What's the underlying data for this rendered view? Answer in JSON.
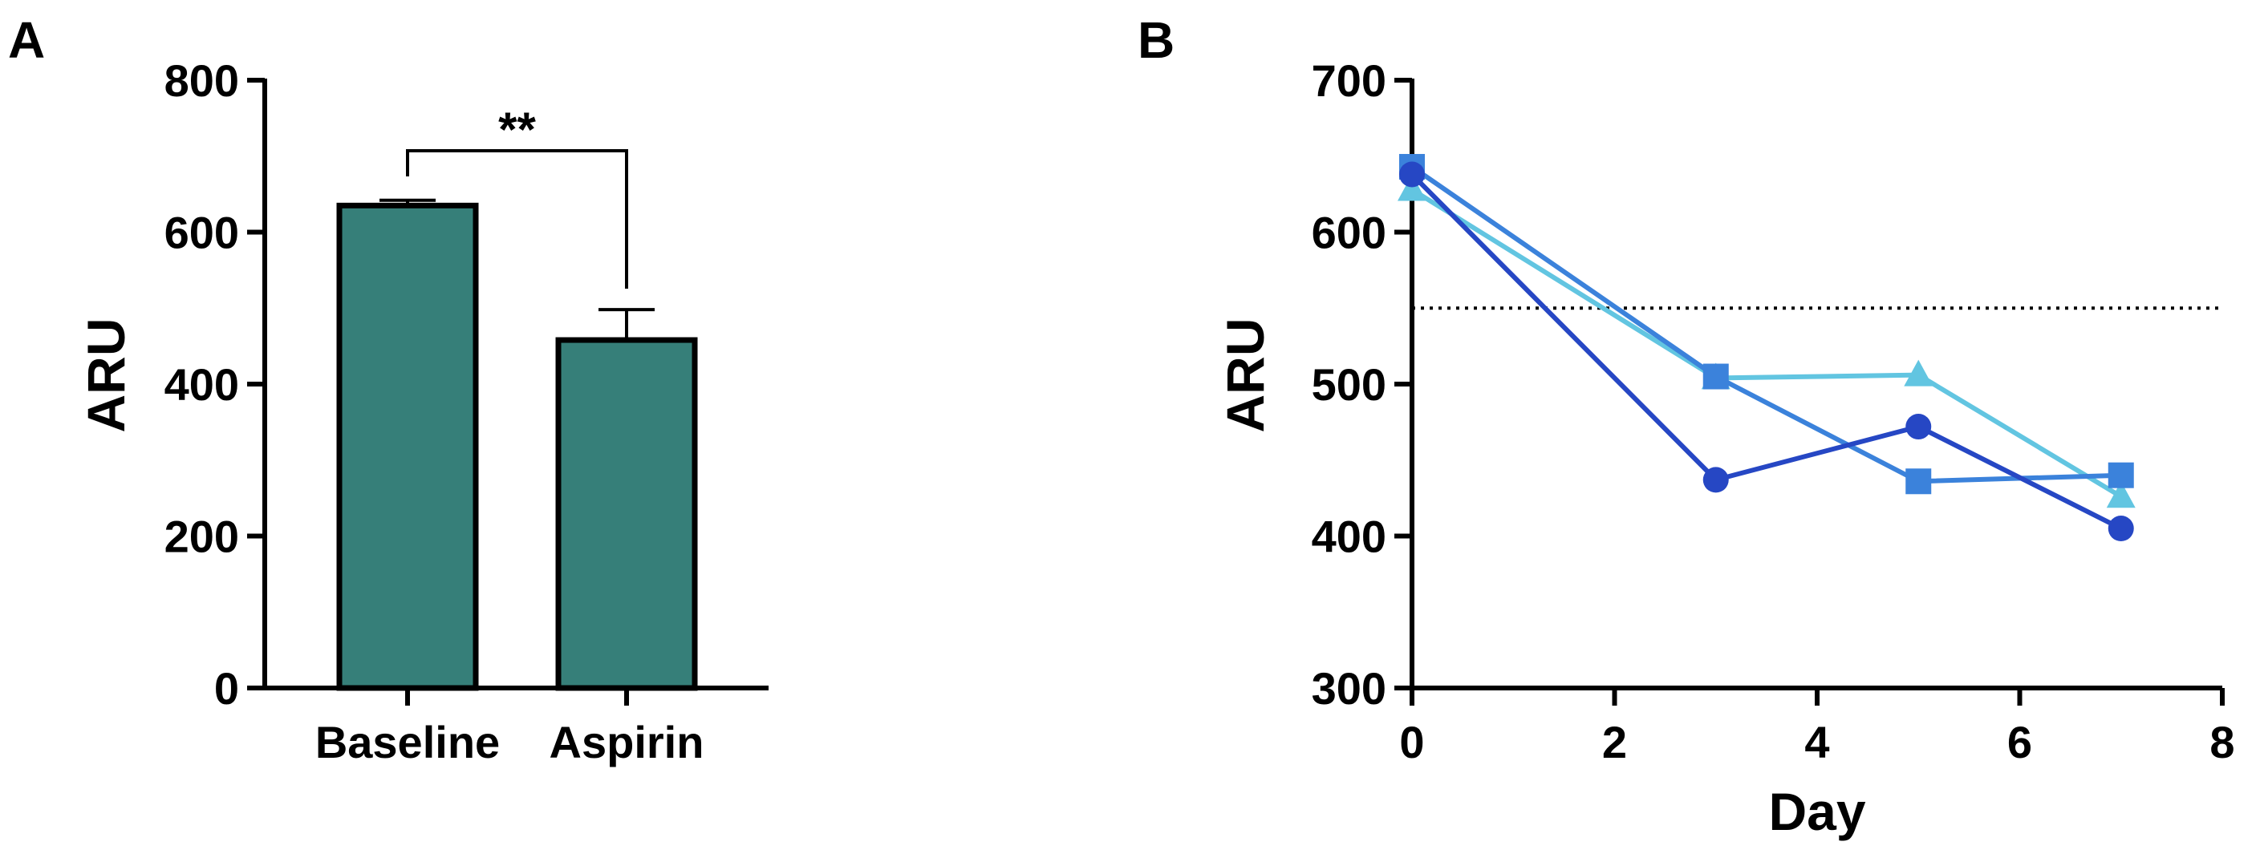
{
  "panels": {
    "a": {
      "label": "A"
    },
    "b": {
      "label": "B"
    }
  },
  "chart_data": [
    {
      "type": "bar",
      "categories": [
        "Baseline",
        "Aspirin"
      ],
      "values": [
        635,
        458
      ],
      "error": [
        7,
        40
      ],
      "ylabel": "ARU",
      "xlabel": "",
      "ylim": [
        0,
        800
      ],
      "yticks": [
        0,
        200,
        400,
        600,
        800
      ],
      "bar_color": "#367f79",
      "significance": {
        "between": [
          0,
          1
        ],
        "label": "**"
      },
      "grid": false
    },
    {
      "type": "line",
      "xlabel": "Day",
      "ylabel": "ARU",
      "xlim": [
        0,
        8
      ],
      "ylim": [
        300,
        700
      ],
      "xticks": [
        0,
        2,
        4,
        6,
        8
      ],
      "yticks": [
        300,
        400,
        500,
        600,
        700
      ],
      "reference_line": {
        "y": 550,
        "style": "dotted"
      },
      "grid": false,
      "series": [
        {
          "marker": "triangle",
          "color": "#62c5e1",
          "x": [
            0,
            3,
            5,
            7
          ],
          "y": [
            628,
            504,
            506,
            426
          ]
        },
        {
          "marker": "square",
          "color": "#3b82db",
          "x": [
            0,
            3,
            5,
            7
          ],
          "y": [
            643,
            505,
            436,
            440
          ]
        },
        {
          "marker": "circle",
          "color": "#2647c4",
          "x": [
            0,
            3,
            5,
            7
          ],
          "y": [
            638,
            437,
            472,
            405
          ]
        }
      ]
    }
  ]
}
